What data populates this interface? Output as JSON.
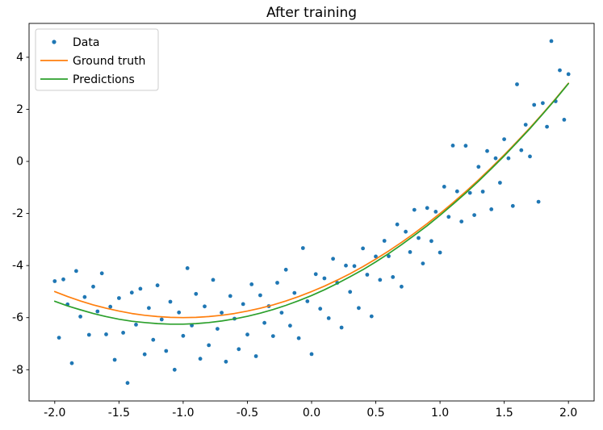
{
  "chart_data": {
    "type": "scatter",
    "title": "After training",
    "xlabel": "",
    "ylabel": "",
    "xlim": [
      -2.2,
      2.2
    ],
    "ylim": [
      -9.2,
      5.3
    ],
    "grid": false,
    "background": "#ffffff",
    "legend": {
      "position": "upper left"
    },
    "x_ticks": [
      -2.0,
      -1.5,
      -1.0,
      -0.5,
      0.0,
      0.5,
      1.0,
      1.5,
      2.0
    ],
    "x_tick_labels": [
      "-2.0",
      "-1.5",
      "-1.0",
      "-0.5",
      "0.0",
      "0.5",
      "1.0",
      "1.5",
      "2.0"
    ],
    "y_ticks": [
      -8,
      -6,
      -4,
      -2,
      0,
      2,
      4
    ],
    "y_tick_labels": [
      "-8",
      "-6",
      "-4",
      "-2",
      "0",
      "2",
      "4"
    ],
    "series": [
      {
        "id": "data",
        "name": "Data",
        "kind": "scatter",
        "color": "#1f77b4",
        "marker": "dot",
        "points": [
          [
            -2.0,
            -4.6
          ],
          [
            -1.967,
            -6.77
          ],
          [
            -1.933,
            -4.53
          ],
          [
            -1.9,
            -5.49
          ],
          [
            -1.867,
            -7.75
          ],
          [
            -1.833,
            -4.21
          ],
          [
            -1.8,
            -5.96
          ],
          [
            -1.767,
            -5.21
          ],
          [
            -1.733,
            -6.66
          ],
          [
            -1.7,
            -4.81
          ],
          [
            -1.667,
            -5.76
          ],
          [
            -1.633,
            -4.3
          ],
          [
            -1.6,
            -6.64
          ],
          [
            -1.567,
            -5.58
          ],
          [
            -1.533,
            -7.62
          ],
          [
            -1.5,
            -5.25
          ],
          [
            -1.467,
            -6.58
          ],
          [
            -1.433,
            -8.51
          ],
          [
            -1.4,
            -5.04
          ],
          [
            -1.367,
            -6.27
          ],
          [
            -1.333,
            -4.89
          ],
          [
            -1.3,
            -7.41
          ],
          [
            -1.267,
            -5.63
          ],
          [
            -1.233,
            -6.85
          ],
          [
            -1.2,
            -4.76
          ],
          [
            -1.167,
            -6.07
          ],
          [
            -1.133,
            -7.28
          ],
          [
            -1.1,
            -5.39
          ],
          [
            -1.067,
            -8.0
          ],
          [
            -1.033,
            -5.8
          ],
          [
            -1.0,
            -6.7
          ],
          [
            -0.967,
            -4.1
          ],
          [
            -0.933,
            -6.3
          ],
          [
            -0.9,
            -5.09
          ],
          [
            -0.867,
            -7.58
          ],
          [
            -0.833,
            -5.57
          ],
          [
            -0.8,
            -7.06
          ],
          [
            -0.767,
            -4.55
          ],
          [
            -0.733,
            -6.43
          ],
          [
            -0.7,
            -5.81
          ],
          [
            -0.667,
            -7.69
          ],
          [
            -0.633,
            -5.17
          ],
          [
            -0.6,
            -6.04
          ],
          [
            -0.567,
            -7.21
          ],
          [
            -0.533,
            -5.48
          ],
          [
            -0.5,
            -6.65
          ],
          [
            -0.467,
            -4.72
          ],
          [
            -0.433,
            -7.48
          ],
          [
            -0.4,
            -5.14
          ],
          [
            -0.367,
            -6.2
          ],
          [
            -0.333,
            -5.56
          ],
          [
            -0.3,
            -6.71
          ],
          [
            -0.267,
            -4.66
          ],
          [
            -0.233,
            -5.81
          ],
          [
            -0.2,
            -4.16
          ],
          [
            -0.167,
            -6.31
          ],
          [
            -0.133,
            -5.05
          ],
          [
            -0.1,
            -6.79
          ],
          [
            -0.067,
            -3.33
          ],
          [
            -0.033,
            -5.37
          ],
          [
            0.0,
            -7.4
          ],
          [
            0.033,
            -4.33
          ],
          [
            0.067,
            -5.66
          ],
          [
            0.1,
            -4.49
          ],
          [
            0.133,
            -6.02
          ],
          [
            0.167,
            -3.74
          ],
          [
            0.2,
            -4.66
          ],
          [
            0.233,
            -6.38
          ],
          [
            0.267,
            -4.0
          ],
          [
            0.3,
            -5.01
          ],
          [
            0.333,
            -4.02
          ],
          [
            0.367,
            -5.63
          ],
          [
            0.4,
            -3.34
          ],
          [
            0.433,
            -4.35
          ],
          [
            0.467,
            -5.95
          ],
          [
            0.5,
            -3.65
          ],
          [
            0.533,
            -4.55
          ],
          [
            0.567,
            -3.05
          ],
          [
            0.6,
            -3.64
          ],
          [
            0.633,
            -4.44
          ],
          [
            0.667,
            -2.42
          ],
          [
            0.7,
            -4.81
          ],
          [
            0.733,
            -2.7
          ],
          [
            0.767,
            -3.48
          ],
          [
            0.8,
            -1.86
          ],
          [
            0.833,
            -2.94
          ],
          [
            0.867,
            -3.92
          ],
          [
            0.9,
            -1.79
          ],
          [
            0.933,
            -3.06
          ],
          [
            0.967,
            -1.93
          ],
          [
            1.0,
            -3.5
          ],
          [
            1.033,
            -0.97
          ],
          [
            1.067,
            -2.13
          ],
          [
            1.1,
            0.61
          ],
          [
            1.133,
            -1.15
          ],
          [
            1.167,
            -2.31
          ],
          [
            1.2,
            0.6
          ],
          [
            1.233,
            -1.21
          ],
          [
            1.267,
            -2.06
          ],
          [
            1.3,
            -0.21
          ],
          [
            1.333,
            -1.16
          ],
          [
            1.367,
            0.4
          ],
          [
            1.4,
            -1.84
          ],
          [
            1.433,
            0.12
          ],
          [
            1.467,
            -0.82
          ],
          [
            1.5,
            0.85
          ],
          [
            1.533,
            0.12
          ],
          [
            1.567,
            -1.71
          ],
          [
            1.6,
            2.96
          ],
          [
            1.633,
            0.43
          ],
          [
            1.667,
            1.41
          ],
          [
            1.7,
            0.19
          ],
          [
            1.733,
            2.17
          ],
          [
            1.767,
            -1.55
          ],
          [
            1.8,
            2.24
          ],
          [
            1.833,
            1.33
          ],
          [
            1.867,
            4.62
          ],
          [
            1.9,
            2.31
          ],
          [
            1.933,
            3.5
          ],
          [
            1.967,
            1.6
          ],
          [
            2.0,
            3.35
          ]
        ]
      },
      {
        "id": "ground-truth",
        "name": "Ground truth",
        "kind": "line",
        "color": "#ff7f0e",
        "x0": -2.0,
        "dx": 0.1,
        "y": [
          -5.0,
          -5.19,
          -5.36,
          -5.51,
          -5.64,
          -5.75,
          -5.84,
          -5.91,
          -5.96,
          -5.99,
          -6.0,
          -5.99,
          -5.96,
          -5.91,
          -5.84,
          -5.75,
          -5.64,
          -5.51,
          -5.36,
          -5.19,
          -5.0,
          -4.79,
          -4.56,
          -4.31,
          -4.04,
          -3.75,
          -3.44,
          -3.11,
          -2.76,
          -2.39,
          -2.0,
          -1.59,
          -1.16,
          -0.71,
          -0.24,
          0.25,
          0.76,
          1.29,
          1.84,
          2.41,
          3.0
        ]
      },
      {
        "id": "predictions",
        "name": "Predictions",
        "kind": "line",
        "color": "#2ca02c",
        "x0": -2.0,
        "dx": 0.1,
        "y": [
          -5.37,
          -5.55,
          -5.7,
          -5.84,
          -5.96,
          -6.06,
          -6.14,
          -6.19,
          -6.23,
          -6.25,
          -6.25,
          -6.23,
          -6.19,
          -6.13,
          -6.05,
          -5.95,
          -5.83,
          -5.69,
          -5.53,
          -5.35,
          -5.15,
          -4.93,
          -4.69,
          -4.43,
          -4.16,
          -3.86,
          -3.54,
          -3.2,
          -2.84,
          -2.47,
          -2.07,
          -1.65,
          -1.22,
          -0.76,
          -0.28,
          0.21,
          0.73,
          1.26,
          1.82,
          2.39,
          2.99
        ]
      }
    ]
  }
}
